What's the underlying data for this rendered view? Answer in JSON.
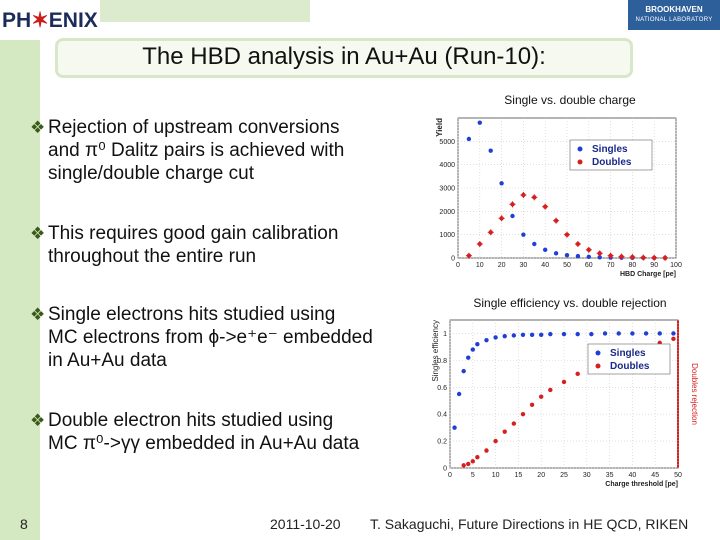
{
  "header": {
    "logo_left_text": "PH",
    "logo_left_red": "✶",
    "logo_left_text2": "ENIX",
    "logo_right_title": "BROOKHAVEN",
    "logo_right_sub": "NATIONAL LABORATORY",
    "title": "The HBD analysis in Au+Au (Run-10):"
  },
  "bullets": [
    {
      "lines": [
        "Rejection of upstream conversions",
        "and π⁰ Dalitz pairs is achieved with",
        "single/double charge cut"
      ]
    },
    {
      "lines": [
        "This requires good gain calibration",
        "throughout the entire run"
      ]
    },
    {
      "lines": [
        "Single electrons hits studied using",
        "MC electrons from ϕ->e⁺e⁻ embedded",
        "in Au+Au data"
      ]
    },
    {
      "lines": [
        "Double electron hits studied using",
        "MC π⁰->γγ embedded in Au+Au data"
      ]
    }
  ],
  "chart1": {
    "caption": "Single vs. double charge",
    "ylabel": "Yield",
    "xlabel": "HBD Charge [pe]",
    "yticks": [
      "0",
      "1000",
      "2000",
      "3000",
      "4000",
      "5000"
    ],
    "xticks": [
      "0",
      "10",
      "20",
      "30",
      "40",
      "50",
      "60",
      "70",
      "80",
      "90",
      "100"
    ],
    "legend_singles": "Singles",
    "legend_doubles": "Doubles"
  },
  "chart2": {
    "caption": "Single efficiency vs. double rejection",
    "ylabel": "Singles efficiency",
    "y2label": "Doubles rejection",
    "xlabel": "Charge threshold [pe]",
    "yticks": [
      "0",
      "0.2",
      "0.4",
      "0.6",
      "0.8",
      "1"
    ],
    "xticks": [
      "0",
      "5",
      "10",
      "15",
      "20",
      "25",
      "30",
      "35",
      "40",
      "45",
      "50"
    ],
    "legend_singles": "Singles",
    "legend_doubles": "Doubles"
  },
  "chart_data": [
    {
      "type": "scatter",
      "title": "Single vs. double charge",
      "xlabel": "HBD Charge [pe]",
      "ylabel": "Yield",
      "xlim": [
        0,
        100
      ],
      "ylim": [
        0,
        6000
      ],
      "legend": "top-right",
      "series": [
        {
          "name": "Singles",
          "color": "#1f3fd6",
          "x": [
            5,
            10,
            15,
            20,
            25,
            30,
            35,
            40,
            45,
            50,
            55,
            60,
            65,
            70,
            75,
            80,
            85,
            90,
            95
          ],
          "y": [
            5100,
            5800,
            4600,
            3200,
            1800,
            1000,
            600,
            350,
            200,
            120,
            80,
            50,
            30,
            20,
            15,
            10,
            8,
            5,
            3
          ]
        },
        {
          "name": "Doubles",
          "color": "#d62020",
          "x": [
            5,
            10,
            15,
            20,
            25,
            30,
            35,
            40,
            45,
            50,
            55,
            60,
            65,
            70,
            75,
            80,
            85,
            90,
            95
          ],
          "y": [
            100,
            600,
            1100,
            1700,
            2300,
            2700,
            2600,
            2200,
            1600,
            1000,
            600,
            350,
            200,
            100,
            60,
            40,
            20,
            10,
            5
          ]
        }
      ]
    },
    {
      "type": "scatter",
      "title": "Single efficiency vs. double rejection",
      "xlabel": "Charge threshold [pe]",
      "ylabel": "Singles efficiency",
      "y2label": "Doubles rejection",
      "xlim": [
        0,
        50
      ],
      "ylim": [
        0,
        1.1
      ],
      "legend": "center-right",
      "series": [
        {
          "name": "Singles",
          "color": "#1f3fd6",
          "x": [
            1,
            2,
            3,
            4,
            5,
            6,
            8,
            10,
            12,
            14,
            16,
            18,
            20,
            22,
            25,
            28,
            31,
            34,
            37,
            40,
            43,
            46,
            49
          ],
          "y": [
            0.3,
            0.55,
            0.72,
            0.82,
            0.88,
            0.92,
            0.95,
            0.97,
            0.98,
            0.985,
            0.99,
            0.99,
            0.99,
            0.995,
            0.995,
            0.995,
            0.995,
            1.0,
            1.0,
            1.0,
            1.0,
            1.0,
            1.0
          ]
        },
        {
          "name": "Doubles",
          "color": "#d62020",
          "x": [
            3,
            4,
            5,
            6,
            8,
            10,
            12,
            14,
            16,
            18,
            20,
            22,
            25,
            28,
            31,
            34,
            37,
            40,
            43,
            46,
            49
          ],
          "y": [
            0.02,
            0.03,
            0.05,
            0.08,
            0.13,
            0.2,
            0.27,
            0.33,
            0.4,
            0.47,
            0.53,
            0.58,
            0.64,
            0.7,
            0.75,
            0.79,
            0.83,
            0.86,
            0.9,
            0.93,
            0.96
          ]
        }
      ]
    }
  ],
  "footer": {
    "page": "8",
    "date": "2011-10-20",
    "credit": "T. Sakaguchi, Future Directions in HE QCD, RIKEN"
  }
}
